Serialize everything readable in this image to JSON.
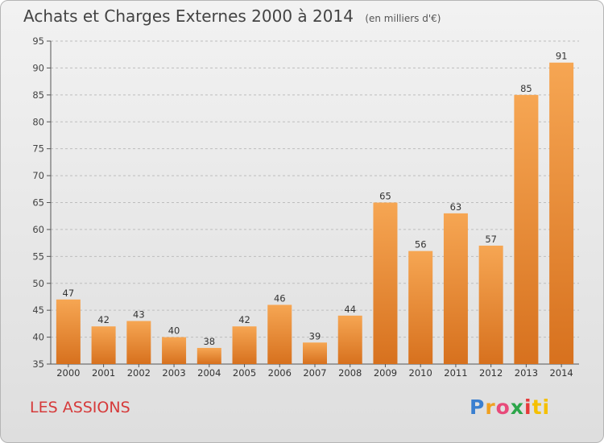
{
  "header": {
    "title": "Achats et Charges Externes 2000 à 2014",
    "unit": "(en milliers d'€)"
  },
  "footer": {
    "commune": "LES ASSIONS",
    "logo": [
      "P",
      "r",
      "o",
      "x",
      "i",
      "ti"
    ]
  },
  "colors": {
    "bar_light": "#f6a653",
    "bar_dark": "#d7711e",
    "grid": "#bdbdbd",
    "axis": "#555555"
  },
  "chart_data": {
    "type": "bar",
    "title": "Achats et Charges Externes 2000 à 2014",
    "subtitle": "(en milliers d'€)",
    "xlabel": "",
    "ylabel": "",
    "categories": [
      "2000",
      "2001",
      "2002",
      "2003",
      "2004",
      "2005",
      "2006",
      "2007",
      "2008",
      "2009",
      "2010",
      "2011",
      "2012",
      "2013",
      "2014"
    ],
    "values": [
      47,
      42,
      43,
      40,
      38,
      42,
      46,
      39,
      44,
      65,
      56,
      63,
      57,
      85,
      91
    ],
    "ylim": [
      35,
      95
    ],
    "yticks": [
      35,
      40,
      45,
      50,
      55,
      60,
      65,
      70,
      75,
      80,
      85,
      90,
      95
    ],
    "grid": "horizontal dashed",
    "legend": "none"
  }
}
